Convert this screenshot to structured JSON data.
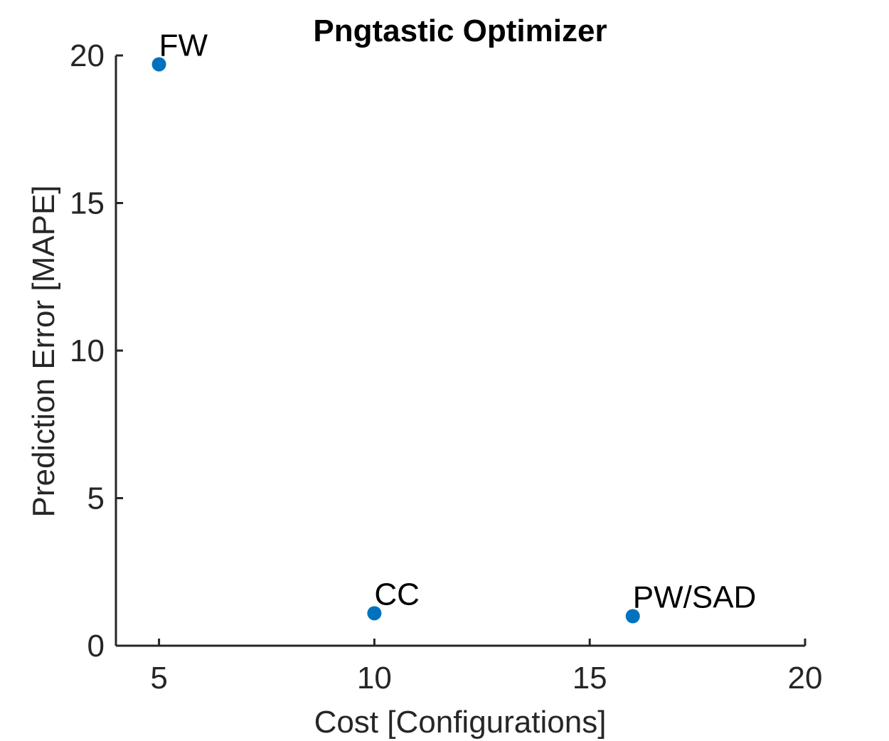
{
  "chart_data": {
    "type": "scatter",
    "title": "Pngtastic Optimizer",
    "xlabel": "Cost [Configurations]",
    "ylabel": "Prediction Error [MAPE]",
    "xlim": [
      4,
      20
    ],
    "ylim": [
      0,
      20
    ],
    "xticks": [
      5,
      10,
      15,
      20
    ],
    "yticks": [
      0,
      5,
      10,
      15,
      20
    ],
    "grid": false,
    "series": [
      {
        "color": "#0072BD",
        "points": [
          {
            "x": 5,
            "y": 19.7,
            "label": "FW"
          },
          {
            "x": 10,
            "y": 1.1,
            "label": "CC"
          },
          {
            "x": 16,
            "y": 1.0,
            "label": "PW/SAD"
          }
        ]
      }
    ]
  }
}
